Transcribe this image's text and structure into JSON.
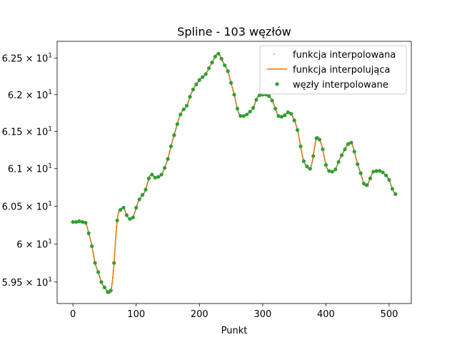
{
  "chart_data": {
    "type": "line",
    "title": "Spline - 103 węzłów",
    "xlabel": "Punkt",
    "ylabel": "",
    "xlim": [
      -25,
      535
    ],
    "ylim": [
      59.22,
      62.73
    ],
    "yscale": "log",
    "xticks": [
      0,
      100,
      200,
      300,
      400,
      500
    ],
    "xtick_labels": [
      "0",
      "100",
      "200",
      "300",
      "400",
      "500"
    ],
    "yticks": [
      59.5,
      60.0,
      60.5,
      61.0,
      61.5,
      62.0,
      62.5
    ],
    "ytick_labels": [
      {
        "mantissa": "5.95",
        "exp": "1"
      },
      {
        "mantissa": "6",
        "exp": "1"
      },
      {
        "mantissa": "6.05",
        "exp": "1"
      },
      {
        "mantissa": "6.1",
        "exp": "1"
      },
      {
        "mantissa": "6.15",
        "exp": "1"
      },
      {
        "mantissa": "6.2",
        "exp": "1"
      },
      {
        "mantissa": "6.25",
        "exp": "1"
      }
    ],
    "legend_position": "top-right",
    "grid": false,
    "series": [
      {
        "name": "funkcja interpolowana",
        "style": "dots",
        "color": "#1f77b4"
      },
      {
        "name": "funkcja interpolująca",
        "style": "line",
        "color": "#ff7f0e"
      },
      {
        "name": "węzły interpolowane",
        "style": "markers",
        "color": "#2ca02c"
      }
    ],
    "nodes": {
      "x": [
        0,
        5,
        10,
        15,
        20,
        25,
        30,
        35,
        40,
        45,
        50,
        55,
        60,
        65,
        70,
        75,
        80,
        85,
        90,
        95,
        100,
        105,
        110,
        115,
        120,
        125,
        130,
        135,
        140,
        145,
        150,
        155,
        160,
        165,
        170,
        175,
        180,
        185,
        190,
        195,
        200,
        205,
        210,
        215,
        220,
        225,
        230,
        235,
        240,
        245,
        250,
        255,
        260,
        265,
        270,
        275,
        280,
        285,
        290,
        295,
        300,
        305,
        310,
        315,
        320,
        325,
        330,
        335,
        340,
        345,
        350,
        355,
        360,
        365,
        370,
        375,
        380,
        385,
        390,
        395,
        400,
        405,
        410,
        415,
        420,
        425,
        430,
        435,
        440,
        445,
        450,
        455,
        460,
        465,
        470,
        475,
        480,
        485,
        490,
        495,
        500,
        505,
        510
      ],
      "y": [
        60.29,
        60.29,
        60.3,
        60.29,
        60.28,
        60.14,
        59.97,
        59.75,
        59.63,
        59.5,
        59.43,
        59.37,
        59.39,
        59.75,
        60.31,
        60.45,
        60.48,
        60.38,
        60.33,
        60.35,
        60.48,
        60.59,
        60.65,
        60.72,
        60.87,
        60.92,
        60.88,
        60.89,
        60.92,
        61.01,
        61.13,
        61.3,
        61.45,
        61.6,
        61.73,
        61.8,
        61.85,
        61.97,
        62.07,
        62.14,
        62.2,
        62.24,
        62.28,
        62.36,
        62.44,
        62.52,
        62.56,
        62.49,
        62.4,
        62.32,
        62.16,
        62.0,
        61.81,
        61.71,
        61.71,
        61.73,
        61.77,
        61.82,
        61.93,
        61.99,
        62.0,
        62.0,
        61.98,
        61.92,
        61.81,
        61.71,
        61.7,
        61.72,
        61.76,
        61.74,
        61.65,
        61.52,
        61.3,
        61.1,
        61.03,
        61.0,
        61.17,
        61.41,
        61.39,
        61.26,
        61.05,
        60.97,
        60.96,
        60.99,
        61.09,
        61.18,
        61.26,
        61.33,
        61.35,
        61.23,
        61.06,
        60.94,
        60.8,
        60.78,
        60.87,
        60.96,
        60.97,
        60.97,
        60.95,
        60.91,
        60.85,
        60.73,
        60.66
      ]
    }
  }
}
